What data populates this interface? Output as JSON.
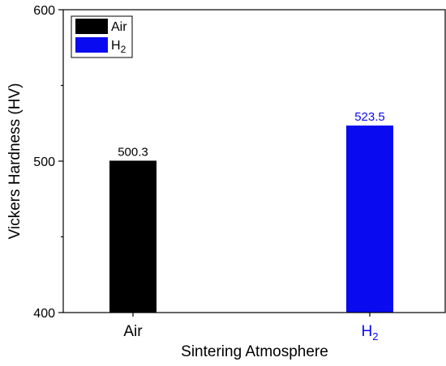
{
  "chart_data": {
    "type": "bar",
    "categories": [
      {
        "label": "Air",
        "base": "Air",
        "sub": ""
      },
      {
        "label": "H2",
        "base": "H",
        "sub": "2"
      }
    ],
    "values": [
      500.3,
      523.5
    ],
    "value_labels": [
      "500.3",
      "523.5"
    ],
    "colors": [
      "#000000",
      "#0a0af0"
    ],
    "label_colors": [
      "#000000",
      "#0a0af0"
    ],
    "xlabel": "Sintering Atmosphere",
    "ylabel": "Vickers Hardness (HV)",
    "ylim": [
      400,
      600
    ],
    "yticks": [
      400,
      500,
      600
    ],
    "yticks_minor": [
      450,
      550
    ],
    "grid": false,
    "legend": {
      "placement": "top-left",
      "entries": [
        {
          "base": "Air",
          "sub": "",
          "color": "#000000"
        },
        {
          "base": "H",
          "sub": "2",
          "color": "#0a0af0"
        }
      ]
    }
  }
}
